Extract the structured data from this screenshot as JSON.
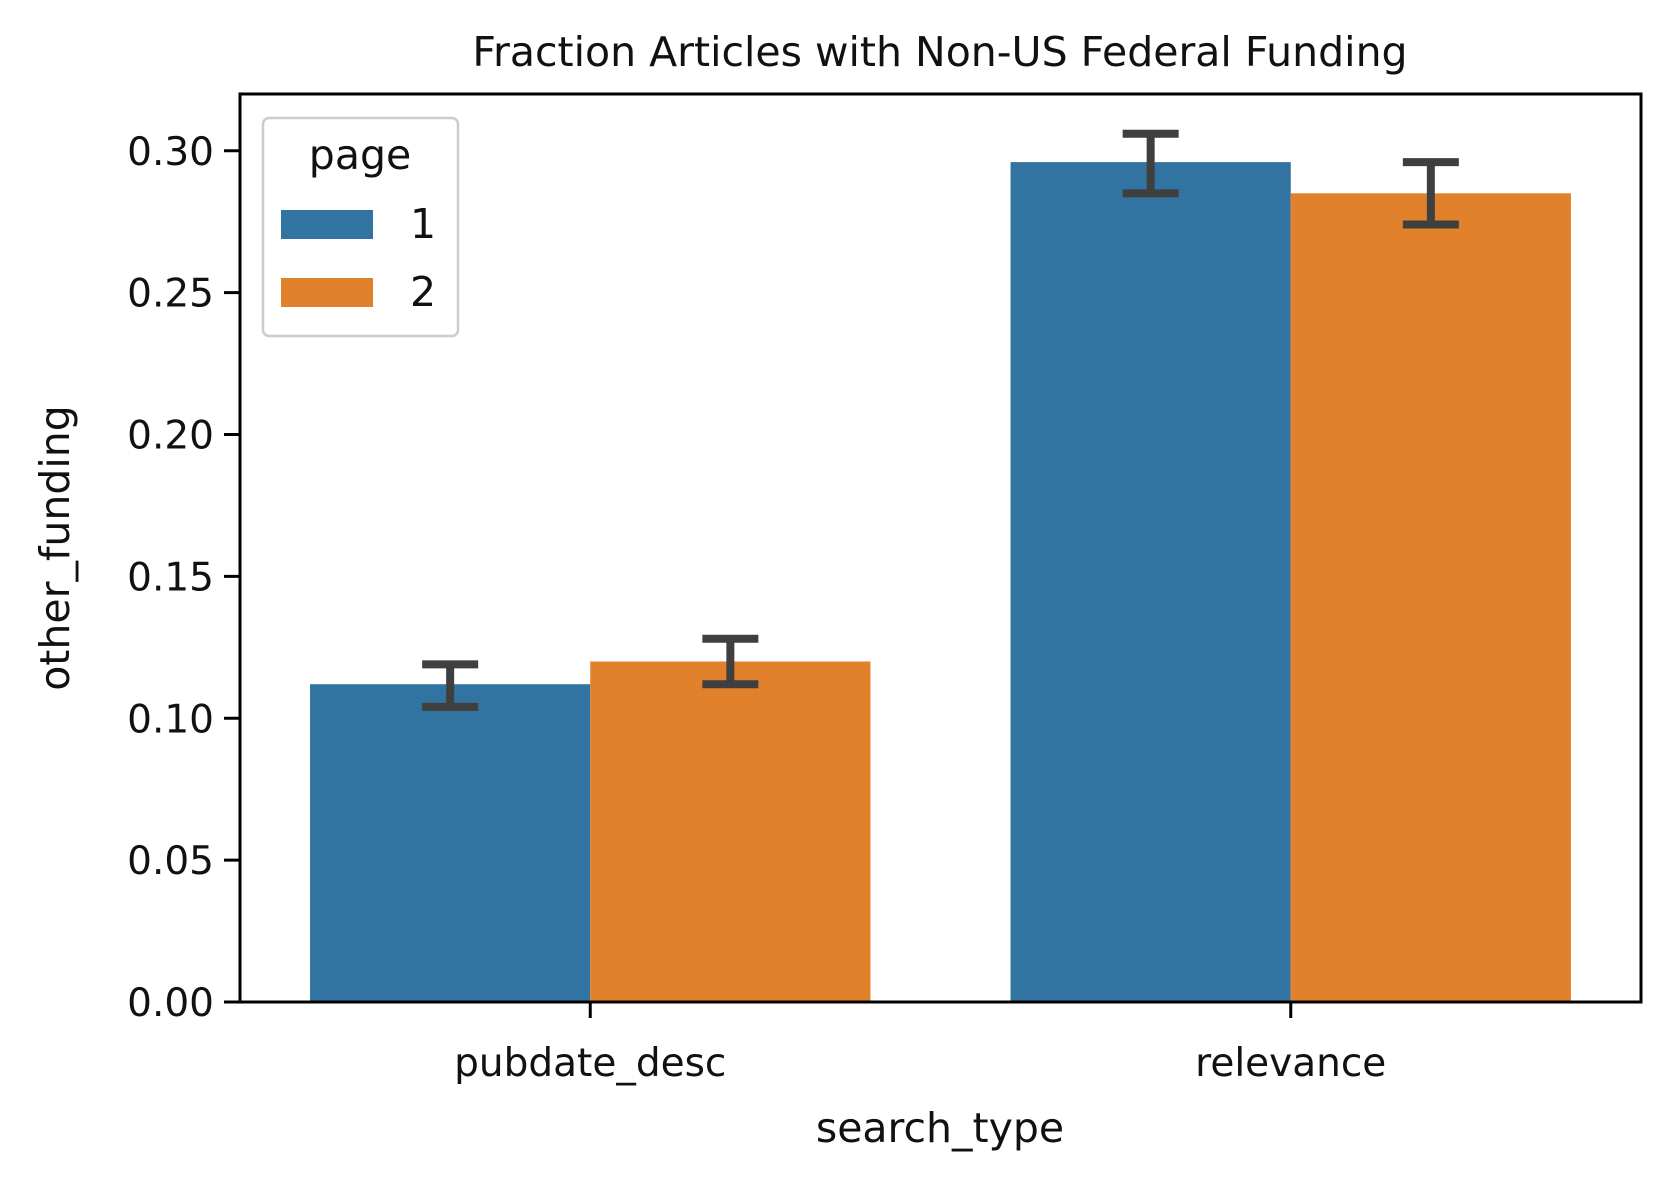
{
  "chart_data": {
    "type": "bar",
    "title": "Fraction Articles with Non-US Federal Funding",
    "xlabel": "search_type",
    "ylabel": "other_funding",
    "categories": [
      "pubdate_desc",
      "relevance"
    ],
    "series": [
      {
        "name": "1",
        "color": "#3274a1",
        "values": [
          0.112,
          0.296
        ],
        "err_low": [
          0.104,
          0.285
        ],
        "err_high": [
          0.119,
          0.306
        ]
      },
      {
        "name": "2",
        "color": "#e1812c",
        "values": [
          0.12,
          0.285
        ],
        "err_low": [
          0.112,
          0.274
        ],
        "err_high": [
          0.128,
          0.296
        ]
      }
    ],
    "ylim": [
      0,
      0.32
    ],
    "yticks": [
      0.0,
      0.05,
      0.1,
      0.15,
      0.2,
      0.25,
      0.3
    ],
    "ytick_labels": [
      "0.00",
      "0.05",
      "0.10",
      "0.15",
      "0.20",
      "0.25",
      "0.30"
    ],
    "legend": {
      "title": "page",
      "placement": "top-left"
    },
    "grid": false,
    "errorbar_color": "#3f3f3f"
  }
}
